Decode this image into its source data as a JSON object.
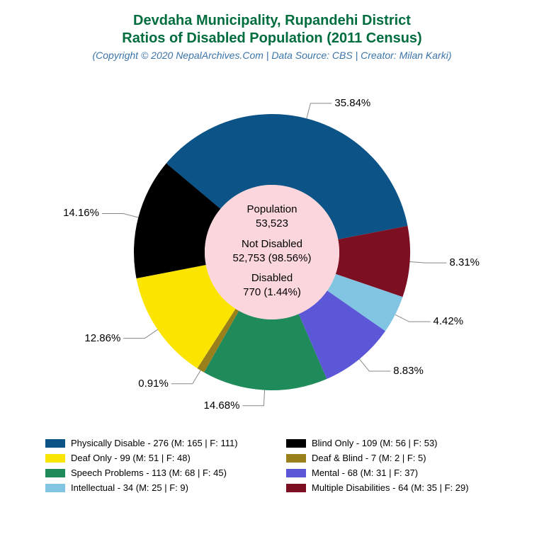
{
  "title_line1": "Devdaha Municipality, Rupandehi District",
  "title_line2": "Ratios of Disabled Population (2011 Census)",
  "subtitle": "(Copyright © 2020 NepalArchives.Com | Data Source: CBS | Creator: Milan Karki)",
  "title_color": "#006d3f",
  "subtitle_color": "#3b74a8",
  "chart": {
    "type": "pie",
    "outer_r": 195,
    "inner_r": 95,
    "center_fill": "#fbd7dd",
    "background": "#ffffff",
    "start_angle_deg": -50,
    "slices": [
      {
        "key": "physically",
        "pct": 35.84,
        "color": "#0c5488",
        "label_pct": "35.84%"
      },
      {
        "key": "multiple",
        "pct": 8.31,
        "color": "#7d0f23",
        "label_pct": "8.31%"
      },
      {
        "key": "intellectual",
        "pct": 4.42,
        "color": "#82c5e2",
        "label_pct": "4.42%"
      },
      {
        "key": "mental",
        "pct": 8.83,
        "color": "#5b57d6",
        "label_pct": "8.83%"
      },
      {
        "key": "speech",
        "pct": 14.68,
        "color": "#1f8a5a",
        "label_pct": "14.68%"
      },
      {
        "key": "deafblind",
        "pct": 0.91,
        "color": "#99801b",
        "label_pct": "0.91%"
      },
      {
        "key": "deaf",
        "pct": 12.86,
        "color": "#fbe500",
        "label_pct": "12.86%"
      },
      {
        "key": "blind",
        "pct": 14.16,
        "color": "#000000",
        "label_pct": "14.16%"
      }
    ],
    "center_text": {
      "l1": "Population",
      "l2": "53,523",
      "l3": "Not Disabled",
      "l4": "52,753 (98.56%)",
      "l5": "Disabled",
      "l6": "770 (1.44%)"
    }
  },
  "legend": [
    {
      "color": "#0c5488",
      "text": "Physically Disable - 276 (M: 165 | F: 111)"
    },
    {
      "color": "#000000",
      "text": "Blind Only - 109 (M: 56 | F: 53)"
    },
    {
      "color": "#fbe500",
      "text": "Deaf Only - 99 (M: 51 | F: 48)"
    },
    {
      "color": "#99801b",
      "text": "Deaf & Blind - 7 (M: 2 | F: 5)"
    },
    {
      "color": "#1f8a5a",
      "text": "Speech Problems - 113 (M: 68 | F: 45)"
    },
    {
      "color": "#5b57d6",
      "text": "Mental - 68 (M: 31 | F: 37)"
    },
    {
      "color": "#82c5e2",
      "text": "Intellectual - 34 (M: 25 | F: 9)"
    },
    {
      "color": "#7d0f23",
      "text": "Multiple Disabilities - 64 (M: 35 | F: 29)"
    }
  ]
}
